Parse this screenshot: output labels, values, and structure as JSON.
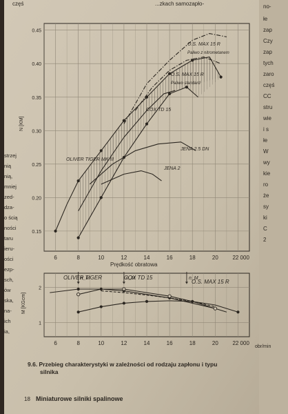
{
  "colors": {
    "paper": "#cdc3b0",
    "paper_dark": "#b9ae9a",
    "ink": "#2b2620",
    "grid": "#8f8676",
    "shadow": "#3a3129"
  },
  "page": {
    "top_left_fragment": "częś",
    "top_center_fragment": "...zkach samozapło-",
    "top_right_fragment": "no-",
    "left_margin_words": [
      "strzej",
      "nią",
      "nią,",
      "mniej",
      "zed-",
      "dza-",
      "o ścią",
      "ności",
      "taru",
      "ieru-",
      "ości",
      "ezp-",
      "sch,",
      "ów",
      "ska,",
      "na-",
      "ich",
      "ia,"
    ],
    "right_margin_words": [
      "łe",
      "zap",
      "Czy",
      "zap",
      "tych",
      "zaro",
      "częś",
      "CC",
      "stru",
      "wie",
      "i s",
      "łe",
      "W",
      "wy",
      "kie",
      "ro",
      "że",
      "sy",
      "ki",
      "C",
      "2"
    ],
    "caption": "9.6. Przebieg charakterystyki w zależności od rodzaju zapłonu i typu silnika",
    "footer": "Miniaturowe silniki spalinowe",
    "footer_page_num": "18"
  },
  "chart_data": [
    {
      "type": "line",
      "x_ticks": [
        "6",
        "8",
        "10",
        "12",
        "14",
        "16",
        "18",
        "20",
        "22 000"
      ],
      "y_ticks": [
        "0.15",
        "0.20",
        "0.25",
        "0.30",
        "0.35",
        "0.40",
        "0.45"
      ],
      "ylabel": "N [KM]",
      "xlabel": "Prędkość obratowa",
      "xlim": [
        5,
        23
      ],
      "ylim": [
        0.12,
        0.46
      ],
      "grid": true,
      "series": [
        {
          "name": "O.S. MAX 15 R",
          "sublabel": "Paliwo z nitrometanem",
          "style": "dash-dot",
          "x": [
            12.0,
            14.0,
            16.0,
            18.0,
            19.5,
            21.0
          ],
          "y": [
            0.31,
            0.37,
            0.405,
            0.435,
            0.445,
            0.44
          ]
        },
        {
          "name": "O.S. MAX 15 R",
          "sublabel": "Paliwo standard",
          "style": "dash-dot",
          "x": [
            13.0,
            14.5,
            16.0,
            17.5,
            19.0,
            20.5
          ],
          "y": [
            0.33,
            0.365,
            0.39,
            0.405,
            0.41,
            0.4
          ]
        },
        {
          "name": "O.S. MAX 15 R",
          "style": "solid",
          "x": [
            8.0,
            10.0,
            12.0,
            14.0,
            16.0,
            18.0,
            19.5,
            20.5
          ],
          "y": [
            0.225,
            0.27,
            0.315,
            0.35,
            0.385,
            0.405,
            0.41,
            0.38
          ]
        },
        {
          "name": "COX TD 15",
          "style": "solid",
          "x": [
            8.0,
            10.0,
            12.0,
            14.0,
            15.5,
            16.5
          ],
          "y": [
            0.18,
            0.24,
            0.29,
            0.33,
            0.355,
            0.36
          ]
        },
        {
          "name": "OLIVER TIGER MK III",
          "style": "solid",
          "x": [
            8.0,
            10.0,
            12.0,
            14.0,
            16.0,
            17.5,
            18.5
          ],
          "y": [
            0.14,
            0.2,
            0.26,
            0.31,
            0.355,
            0.365,
            0.35
          ]
        },
        {
          "name": "JENA 2.5 DN",
          "style": "solid",
          "x": [
            9.0,
            11.0,
            13.0,
            15.0,
            17.0,
            18.3
          ],
          "y": [
            0.22,
            0.25,
            0.27,
            0.28,
            0.283,
            0.27
          ]
        },
        {
          "name": "JENA 2",
          "style": "solid",
          "x": [
            10.0,
            12.0,
            13.5,
            14.5,
            15.3
          ],
          "y": [
            0.22,
            0.235,
            0.24,
            0.235,
            0.225
          ]
        },
        {
          "name": "",
          "style": "solid",
          "x": [
            6.0,
            7.0,
            8.0
          ],
          "y": [
            0.15,
            0.19,
            0.225
          ]
        }
      ],
      "markers": [
        {
          "x": 8.0,
          "y": 0.225,
          "shape": "dot"
        },
        {
          "x": 10.0,
          "y": 0.27,
          "shape": "dot"
        },
        {
          "x": 12.0,
          "y": 0.315,
          "shape": "dot"
        },
        {
          "x": 14.0,
          "y": 0.35,
          "shape": "dot"
        },
        {
          "x": 16.0,
          "y": 0.385,
          "shape": "dot"
        },
        {
          "x": 18.0,
          "y": 0.405,
          "shape": "dot"
        },
        {
          "x": 8.0,
          "y": 0.14,
          "shape": "dot"
        },
        {
          "x": 10.0,
          "y": 0.2,
          "shape": "dot"
        },
        {
          "x": 12.0,
          "y": 0.26,
          "shape": "dot"
        },
        {
          "x": 14.0,
          "y": 0.31,
          "shape": "dot"
        },
        {
          "x": 16.0,
          "y": 0.355,
          "shape": "dot"
        },
        {
          "x": 17.5,
          "y": 0.365,
          "shape": "dot"
        },
        {
          "x": 6.0,
          "y": 0.15,
          "shape": "dot"
        },
        {
          "x": 20.5,
          "y": 0.38,
          "shape": "dot"
        }
      ],
      "hatched_regions": [
        {
          "from_series": 2,
          "to_series": 4
        },
        {
          "from_series": 3,
          "to_series": 2
        }
      ]
    },
    {
      "type": "line",
      "x_ticks": [
        "6",
        "8",
        "10",
        "12",
        "14",
        "16",
        "18",
        "20",
        "22 000"
      ],
      "x_unit": "obr/min",
      "y_ticks": [
        "1",
        "2"
      ],
      "ylabel": "M [KGcm]",
      "xlim": [
        5,
        23
      ],
      "ylim": [
        0.6,
        2.4
      ],
      "grid": true,
      "labels": [
        "OLIVER TIGER",
        "COX TD 15",
        "O.S. MAX 15 R"
      ],
      "peak_labels": [
        {
          "text": "n_M",
          "x": 8.0
        },
        {
          "text": "n_M",
          "x": 12.0
        },
        {
          "text": "n_M",
          "x": 17.5
        }
      ],
      "series": [
        {
          "name": "OLIVER TIGER",
          "style": "solid",
          "x": [
            5.5,
            8.0,
            10.0,
            12.0,
            14.0,
            16.0,
            18.0,
            20.0
          ],
          "y": [
            1.85,
            1.95,
            1.95,
            1.9,
            1.8,
            1.7,
            1.55,
            1.4
          ]
        },
        {
          "name": "COX TD 15",
          "style": "solid",
          "x": [
            8.0,
            10.0,
            12.0,
            14.0,
            16.0,
            18.0,
            20.0,
            21.0
          ],
          "y": [
            1.8,
            1.95,
            1.95,
            1.85,
            1.75,
            1.6,
            1.4,
            1.3
          ]
        },
        {
          "name": "O.S. MAX 15 R",
          "style": "solid",
          "x": [
            8.0,
            10.0,
            12.0,
            14.0,
            16.0,
            18.0,
            20.0,
            22.0
          ],
          "y": [
            1.3,
            1.45,
            1.55,
            1.6,
            1.62,
            1.6,
            1.5,
            1.3
          ]
        },
        {
          "name": "",
          "style": "dashed",
          "x": [
            10.0,
            12.0,
            14.0,
            16.0,
            18.0,
            20.0
          ],
          "y": [
            1.9,
            1.85,
            1.78,
            1.7,
            1.6,
            1.45
          ]
        }
      ],
      "markers": [
        {
          "x": 8.0,
          "y": 1.95,
          "shape": "dot"
        },
        {
          "x": 10.0,
          "y": 1.95,
          "shape": "dot"
        },
        {
          "x": 12.0,
          "y": 1.9,
          "shape": "dot"
        },
        {
          "x": 16.0,
          "y": 1.7,
          "shape": "dot"
        },
        {
          "x": 8.0,
          "y": 1.3,
          "shape": "dot"
        },
        {
          "x": 10.0,
          "y": 1.45,
          "shape": "dot"
        },
        {
          "x": 12.0,
          "y": 1.55,
          "shape": "dot"
        },
        {
          "x": 14.0,
          "y": 1.6,
          "shape": "dot"
        },
        {
          "x": 18.0,
          "y": 1.6,
          "shape": "dot"
        },
        {
          "x": 22.0,
          "y": 1.3,
          "shape": "dot"
        },
        {
          "x": 8.0,
          "y": 1.8,
          "shape": "circle"
        },
        {
          "x": 12.0,
          "y": 1.95,
          "shape": "circle"
        },
        {
          "x": 16.0,
          "y": 1.75,
          "shape": "circle"
        },
        {
          "x": 20.0,
          "y": 1.4,
          "shape": "circle"
        }
      ]
    }
  ]
}
